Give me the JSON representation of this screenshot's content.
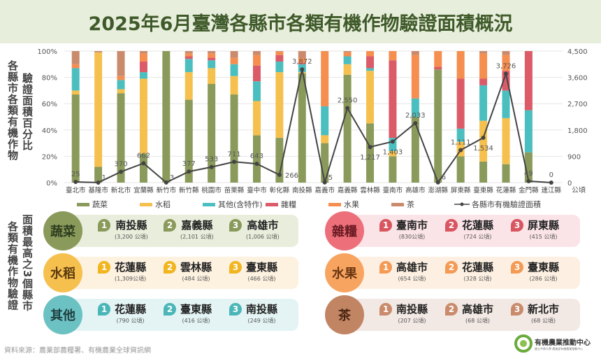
{
  "title": "2025年6月臺灣各縣市各類有機作物驗證面積概況",
  "left_title_1": "各縣市各類有機作物",
  "left_title_2": "驗證面積百分比",
  "bottom_title_1": "各類有機作物驗證",
  "bottom_title_2": "面積最高之3個縣市",
  "source": "資料來源：農業部農糧署、有機農業全球資訊網",
  "logo": {
    "name": "有機農業推動中心",
    "subtitle": "國立中興大學 農業部有機農業推動中心"
  },
  "chart_data": {
    "type": "bar",
    "stacked_percent": true,
    "categories": [
      "臺北市",
      "基隆市",
      "新北市",
      "宜蘭縣",
      "新竹市",
      "新竹縣",
      "桃園市",
      "苗栗縣",
      "臺中市",
      "彰化縣",
      "南投縣",
      "嘉義市",
      "嘉義縣",
      "雲林縣",
      "臺南市",
      "高雄市",
      "澎湖縣",
      "屏東縣",
      "臺東縣",
      "花蓮縣",
      "金門縣",
      "連江縣"
    ],
    "series": [
      {
        "name": "蔬菜",
        "color": "#8a9a5b",
        "values": [
          67,
          12,
          68,
          22,
          100,
          63,
          75,
          67,
          36,
          34,
          83,
          30,
          82,
          45,
          20,
          50,
          86,
          20,
          16,
          14,
          23,
          0
        ]
      },
      {
        "name": "水稻",
        "color": "#f6c04e",
        "values": [
          3,
          87,
          3,
          57,
          0,
          21,
          12,
          14,
          26,
          50,
          1,
          6,
          8,
          40,
          4,
          0,
          0,
          11,
          31,
          35,
          0,
          0
        ]
      },
      {
        "name": "其他(含特作)",
        "color": "#4bbfc0",
        "values": [
          17,
          0,
          7,
          5,
          0,
          10,
          6,
          9,
          15,
          8,
          6,
          22,
          6,
          2,
          10,
          14,
          0,
          10,
          27,
          21,
          32,
          0
        ]
      },
      {
        "name": "雜糧",
        "color": "#dc5b68",
        "values": [
          0,
          0,
          0,
          8,
          0,
          2,
          2,
          0,
          12,
          5,
          1,
          0,
          0,
          9,
          59,
          0,
          2,
          38,
          5,
          15,
          45,
          0
        ]
      },
      {
        "name": "水果",
        "color": "#f58e4f",
        "values": [
          3,
          0,
          3,
          6,
          0,
          2,
          3,
          5,
          8,
          2.5,
          3.7,
          42,
          3,
          4,
          7,
          33,
          12,
          21,
          19,
          12,
          0,
          0
        ]
      },
      {
        "name": "茶",
        "color": "#c98b6b",
        "values": [
          10,
          1,
          19,
          2,
          0,
          2,
          2,
          5,
          3,
          0.5,
          5.3,
          0,
          1,
          0,
          0,
          3,
          0,
          0,
          2,
          3,
          0,
          0
        ]
      }
    ],
    "line": {
      "name": "各縣市有機驗證面積",
      "color": "#444444",
      "values": [
        25,
        1,
        370,
        662,
        3,
        377,
        533,
        711,
        643,
        266,
        3872,
        5,
        2550,
        1217,
        1403,
        2033,
        6,
        1111,
        1534,
        3726,
        49,
        0
      ],
      "labels": [
        "25",
        "1",
        "370",
        "662",
        "3",
        "377",
        "533",
        "711",
        "643",
        "266",
        "3,872",
        "5",
        "2,550",
        "1,217",
        "1,403",
        "2,033",
        "6",
        "1,111",
        "1,534",
        "3,726",
        "49",
        "0"
      ]
    },
    "y_left": {
      "ticks": [
        "0%",
        "20%",
        "40%",
        "60%",
        "80%",
        "100%"
      ],
      "range": [
        0,
        100
      ]
    },
    "y_right": {
      "ticks": [
        "0",
        "900",
        "1,800",
        "2,700",
        "3,600",
        "4,500"
      ],
      "range": [
        0,
        4500
      ],
      "unit": "公頃"
    },
    "grid": true,
    "legend": "bottom"
  },
  "rankings": [
    {
      "crop": "蔬菜",
      "color": "#8a9a5b",
      "circle": "#8a9a5b",
      "bg": "#e9eedc",
      "text": "#2d3d1e",
      "items": [
        {
          "rank": "1",
          "county": "南投縣",
          "area": "(3,200 公頃)"
        },
        {
          "rank": "2",
          "county": "嘉義縣",
          "area": "(2,101 公頃)"
        },
        {
          "rank": "3",
          "county": "高雄市",
          "area": "(1,006 公頃)"
        }
      ]
    },
    {
      "crop": "水稻",
      "color": "#f2b51f",
      "circle": "#f6c04e",
      "bg": "#fdf1e0",
      "text": "#5a3a10",
      "items": [
        {
          "rank": "1",
          "county": "花蓮縣",
          "area": "(1,309公頃)"
        },
        {
          "rank": "2",
          "county": "雲林縣",
          "area": "(484 公頃)"
        },
        {
          "rank": "3",
          "county": "臺東縣",
          "area": "(466 公頃)"
        }
      ]
    },
    {
      "crop": "其他",
      "color": "#4bb6b8",
      "circle": "#6cc1c3",
      "bg": "#e4f4f4",
      "text": "#1f3f40",
      "items": [
        {
          "rank": "1",
          "county": "花蓮縣",
          "area": "(790 公頃)"
        },
        {
          "rank": "2",
          "county": "臺東縣",
          "area": "(416 公頃)"
        },
        {
          "rank": "3",
          "county": "南投縣",
          "area": "(249 公頃)"
        }
      ]
    },
    {
      "crop": "雜糧",
      "color": "#d9555f",
      "circle": "#ec6f7a",
      "bg": "#fbe4e8",
      "text": "#6a1a22",
      "items": [
        {
          "rank": "1",
          "county": "臺南市",
          "area": "(830公頃)"
        },
        {
          "rank": "2",
          "county": "花蓮縣",
          "area": "(724 公頃)"
        },
        {
          "rank": "3",
          "county": "屏東縣",
          "area": "(415 公頃)"
        }
      ]
    },
    {
      "crop": "水果",
      "color": "#f49a55",
      "circle": "#f7a461",
      "bg": "#fdf0e2",
      "text": "#6a3510",
      "items": [
        {
          "rank": "1",
          "county": "高雄市",
          "area": "(654 公頃)"
        },
        {
          "rank": "2",
          "county": "花蓮縣",
          "area": "(328 公頃)"
        },
        {
          "rank": "3",
          "county": "臺東縣",
          "area": "(286 公頃)"
        }
      ]
    },
    {
      "crop": "茶",
      "color": "#c98b6b",
      "circle": "#c28564",
      "bg": "#f2e8e4",
      "text": "#4a2412",
      "items": [
        {
          "rank": "1",
          "county": "南投縣",
          "area": "(207 公頃)"
        },
        {
          "rank": "2",
          "county": "高雄市",
          "area": "(68 公頃)"
        },
        {
          "rank": "3",
          "county": "新北市",
          "area": "(68 公頃)"
        }
      ]
    }
  ]
}
